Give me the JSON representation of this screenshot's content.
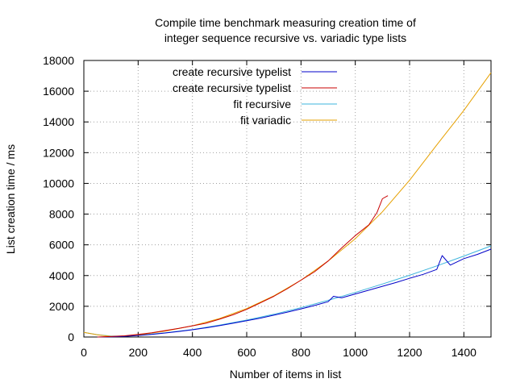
{
  "chart_data": {
    "type": "line",
    "title_lines": [
      "Compile time benchmark measuring creation time of",
      "integer sequence recursive vs. variadic type lists"
    ],
    "xlabel": "Number of items in list",
    "ylabel": "List creation time / ms",
    "xlim": [
      0,
      1500
    ],
    "ylim": [
      0,
      18000
    ],
    "x_ticks": [
      0,
      200,
      400,
      600,
      800,
      1000,
      1200,
      1400
    ],
    "y_ticks": [
      0,
      2000,
      4000,
      6000,
      8000,
      10000,
      12000,
      14000,
      16000,
      18000
    ],
    "grid": true,
    "legend_position": "top-left inside",
    "series": [
      {
        "name": "create recursive typelist",
        "color": "#0000c8",
        "style": "measured",
        "x": [
          50,
          100,
          150,
          200,
          250,
          300,
          350,
          400,
          450,
          500,
          550,
          600,
          650,
          700,
          750,
          800,
          850,
          900,
          920,
          950,
          1000,
          1050,
          1100,
          1150,
          1200,
          1250,
          1300,
          1320,
          1350,
          1400,
          1450,
          1500
        ],
        "y": [
          0,
          10,
          40,
          100,
          170,
          260,
          360,
          470,
          600,
          740,
          900,
          1060,
          1230,
          1420,
          1620,
          1830,
          2050,
          2300,
          2650,
          2550,
          2800,
          3050,
          3300,
          3550,
          3820,
          4080,
          4400,
          5300,
          4680,
          5100,
          5380,
          5720
        ]
      },
      {
        "name": "create recursive typelist",
        "color": "#c80000",
        "style": "measured",
        "x": [
          50,
          100,
          150,
          200,
          250,
          300,
          350,
          400,
          450,
          500,
          550,
          600,
          650,
          700,
          750,
          800,
          850,
          900,
          950,
          1000,
          1050,
          1080,
          1100,
          1120
        ],
        "y": [
          0,
          30,
          80,
          170,
          280,
          420,
          560,
          730,
          900,
          1160,
          1450,
          1800,
          2220,
          2650,
          3150,
          3700,
          4250,
          4950,
          5800,
          6600,
          7300,
          8100,
          9000,
          9200
        ]
      },
      {
        "name": "fit recursive",
        "color": "#3cb4dc",
        "style": "fit",
        "x": [
          0,
          50,
          100,
          150,
          200,
          300,
          400,
          500,
          600,
          700,
          800,
          900,
          1000,
          1100,
          1200,
          1300,
          1400,
          1500
        ],
        "y": [
          300,
          150,
          60,
          60,
          110,
          280,
          490,
          770,
          1100,
          1480,
          1910,
          2390,
          2900,
          3450,
          4020,
          4630,
          5270,
          5930
        ]
      },
      {
        "name": "fit variadic",
        "color": "#e6a000",
        "style": "fit",
        "x": [
          0,
          50,
          100,
          150,
          200,
          300,
          400,
          500,
          600,
          700,
          800,
          900,
          1000,
          1100,
          1200,
          1300,
          1400,
          1500
        ],
        "y": [
          300,
          140,
          40,
          50,
          130,
          390,
          730,
          1200,
          1850,
          2680,
          3700,
          4950,
          6400,
          8150,
          10200,
          12500,
          14750,
          17200
        ]
      }
    ]
  }
}
